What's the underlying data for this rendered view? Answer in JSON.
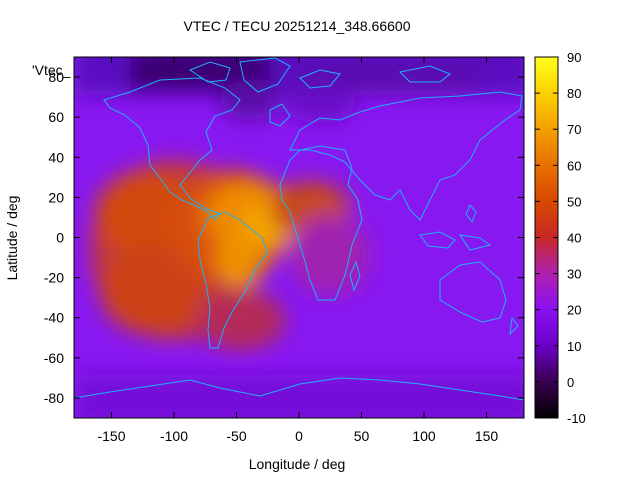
{
  "chart_data": {
    "type": "heatmap",
    "title": "VTEC / TECU 20251214_348.66600",
    "xlabel": "Longitude / deg",
    "ylabel": "Latitude / deg",
    "xlim": [
      -180,
      180
    ],
    "ylim": [
      -90,
      90
    ],
    "x_ticks": [
      -150,
      -100,
      -50,
      0,
      50,
      100,
      150
    ],
    "y_ticks": [
      -80,
      -60,
      -40,
      -20,
      0,
      20,
      40,
      60,
      80
    ],
    "colorbar": {
      "range": [
        -10,
        90
      ],
      "ticks": [
        -10,
        0,
        10,
        20,
        30,
        40,
        50,
        60,
        70,
        80,
        90
      ],
      "palette": [
        "#000000",
        "#4b0068",
        "#7a00e0",
        "#a010e0",
        "#d03070",
        "#c83800",
        "#e05800",
        "#f08c00",
        "#f8b800",
        "#ffe000",
        "#ffff20"
      ]
    },
    "key_label": "'Vtec_",
    "grid": false,
    "legend": "top-left",
    "overlay": "coastlines",
    "coastline_color": "#20b0f8",
    "features": [
      {
        "lon_range": [
          -175,
          -70
        ],
        "lat_range": [
          -45,
          25
        ],
        "value": 45
      },
      {
        "lon_range": [
          -80,
          -20
        ],
        "lat_range": [
          -30,
          25
        ],
        "value": 65
      },
      {
        "lon_range": [
          -30,
          30
        ],
        "lat_range": [
          -5,
          35
        ],
        "value": 55
      },
      {
        "lon_range": [
          -180,
          180
        ],
        "lat_range": [
          60,
          90
        ],
        "value": 8
      },
      {
        "lon_range": [
          -180,
          180
        ],
        "lat_range": [
          -90,
          -60
        ],
        "value": 18
      }
    ]
  }
}
